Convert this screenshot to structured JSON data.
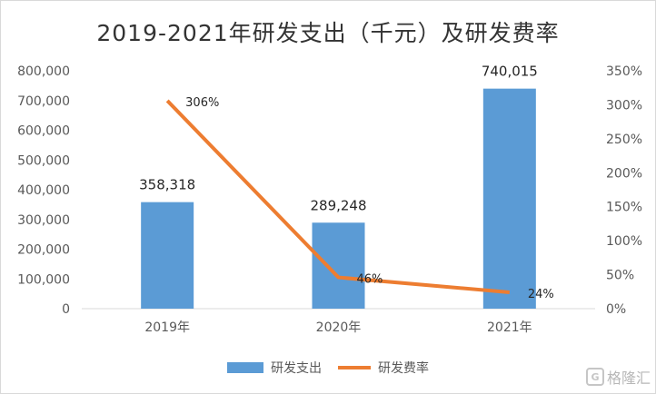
{
  "chart_data": {
    "type": "bar",
    "title": "2019-2021年研发支出（千元）及研发费率",
    "categories": [
      "2019年",
      "2020年",
      "2021年"
    ],
    "series": [
      {
        "name": "研发支出",
        "type": "bar",
        "axis": "left",
        "color": "#5b9bd5",
        "values": [
          358318,
          289248,
          740015
        ],
        "labels": [
          "358,318",
          "289,248",
          "740,015"
        ]
      },
      {
        "name": "研发费率",
        "type": "line",
        "axis": "right",
        "color": "#ed7d31",
        "values": [
          306,
          46,
          24
        ],
        "labels": [
          "306%",
          "46%",
          "24%"
        ]
      }
    ],
    "y_left": {
      "min": 0,
      "max": 800000,
      "ticks": [
        "0",
        "100,000",
        "200,000",
        "300,000",
        "400,000",
        "500,000",
        "600,000",
        "700,000",
        "800,000"
      ]
    },
    "y_right": {
      "min": 0,
      "max": 350,
      "unit": "%",
      "ticks": [
        "0%",
        "50%",
        "100%",
        "150%",
        "200%",
        "250%",
        "300%",
        "350%"
      ]
    },
    "grid": false,
    "legend_position": "bottom"
  },
  "watermark": {
    "text": "格隆汇",
    "icon": "G"
  }
}
